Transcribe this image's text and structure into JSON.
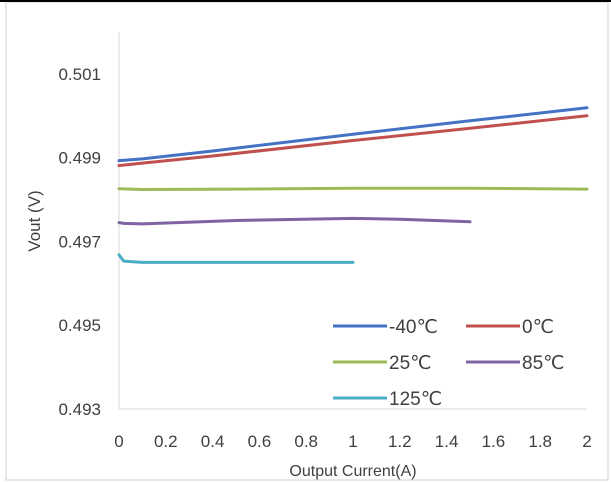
{
  "chart_data": {
    "type": "line",
    "title": "",
    "xlabel": "Output Current(A)",
    "ylabel": "Vout (V)",
    "xlim": [
      0,
      2
    ],
    "ylim": [
      0.493,
      0.502
    ],
    "x_ticks": [
      0,
      0.2,
      0.4,
      0.6,
      0.8,
      1,
      1.2,
      1.4,
      1.6,
      1.8,
      2
    ],
    "x_tick_labels": [
      "0",
      "0.2",
      "0.4",
      "0.6",
      "0.8",
      "1",
      "1.2",
      "1.4",
      "1.6",
      "1.8",
      "2"
    ],
    "y_ticks": [
      0.493,
      0.495,
      0.497,
      0.499,
      0.501
    ],
    "y_tick_labels": [
      "0.493",
      "0.495",
      "0.497",
      "0.499",
      "0.501"
    ],
    "grid": "horizontal-none",
    "legend_position": "bottom-right",
    "series": [
      {
        "name": "-40℃",
        "color": "#4472C4",
        "points": [
          [
            0,
            0.49893
          ],
          [
            0.1,
            0.49897
          ],
          [
            0.4,
            0.49916
          ],
          [
            1,
            0.49956
          ],
          [
            1.5,
            0.49988
          ],
          [
            2,
            0.50019
          ]
        ]
      },
      {
        "name": "0℃",
        "color": "#C0504D",
        "points": [
          [
            0,
            0.49881
          ],
          [
            0.1,
            0.49887
          ],
          [
            0.4,
            0.49904
          ],
          [
            1,
            0.49941
          ],
          [
            1.5,
            0.4997
          ],
          [
            2,
            0.5
          ]
        ]
      },
      {
        "name": "25℃",
        "color": "#9BBB59",
        "points": [
          [
            0,
            0.49826
          ],
          [
            0.1,
            0.49824
          ],
          [
            0.5,
            0.49825
          ],
          [
            1,
            0.49827
          ],
          [
            1.5,
            0.49827
          ],
          [
            2,
            0.49825
          ]
        ]
      },
      {
        "name": "85℃",
        "color": "#8064A2",
        "points": [
          [
            0,
            0.49745
          ],
          [
            0.02,
            0.49743
          ],
          [
            0.1,
            0.49742
          ],
          [
            0.5,
            0.4975
          ],
          [
            1,
            0.49755
          ],
          [
            1.2,
            0.49753
          ],
          [
            1.5,
            0.49747
          ]
        ]
      },
      {
        "name": "125℃",
        "color": "#4BACC6",
        "points": [
          [
            0,
            0.49668
          ],
          [
            0.02,
            0.49653
          ],
          [
            0.1,
            0.4965
          ],
          [
            0.5,
            0.4965
          ],
          [
            1,
            0.4965
          ]
        ]
      }
    ]
  }
}
